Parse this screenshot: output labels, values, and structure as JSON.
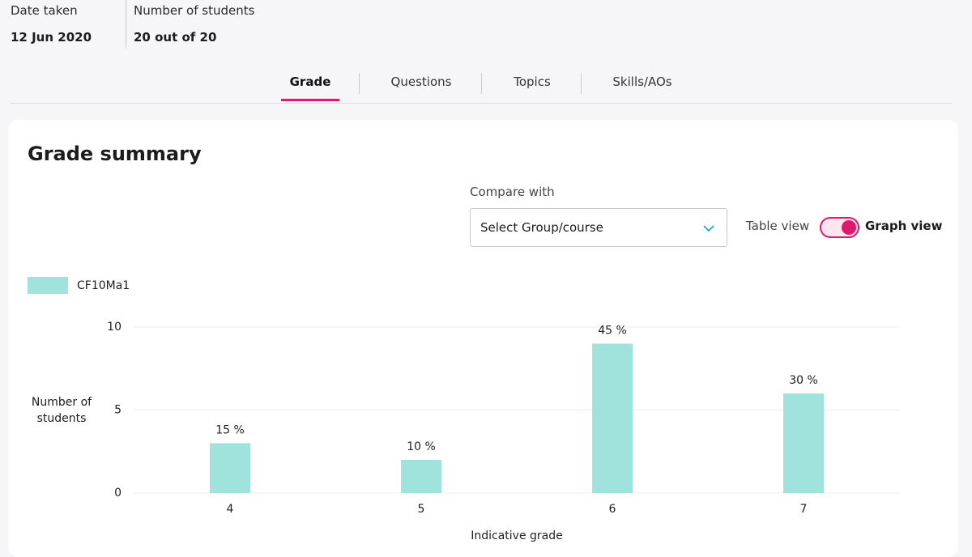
{
  "header": {
    "date_label": "Date taken",
    "date_value": "12 Jun 2020",
    "students_label": "Number of students",
    "students_value": "20 out of 20"
  },
  "tabs": [
    "Grade",
    "Questions",
    "Topics",
    "Skills/AOs"
  ],
  "card": {
    "title": "Grade summary",
    "compare_label": "Compare with",
    "select_placeholder": "Select Group/course",
    "table_view": "Table view",
    "graph_view": "Graph view"
  },
  "chart_data": {
    "type": "bar",
    "x_label": "Indicative grade",
    "y_label": "Number of students",
    "categories": [
      "4",
      "5",
      "6",
      "7"
    ],
    "series": [
      {
        "name": "CF10Ma1",
        "color": "#a0e2dc",
        "values": [
          3,
          2,
          9,
          6
        ],
        "value_labels": [
          "15 %",
          "10 %",
          "45 %",
          "30 %"
        ]
      }
    ],
    "ylim": [
      0,
      10
    ],
    "yticks": [
      0,
      5,
      10
    ],
    "grid": true
  }
}
